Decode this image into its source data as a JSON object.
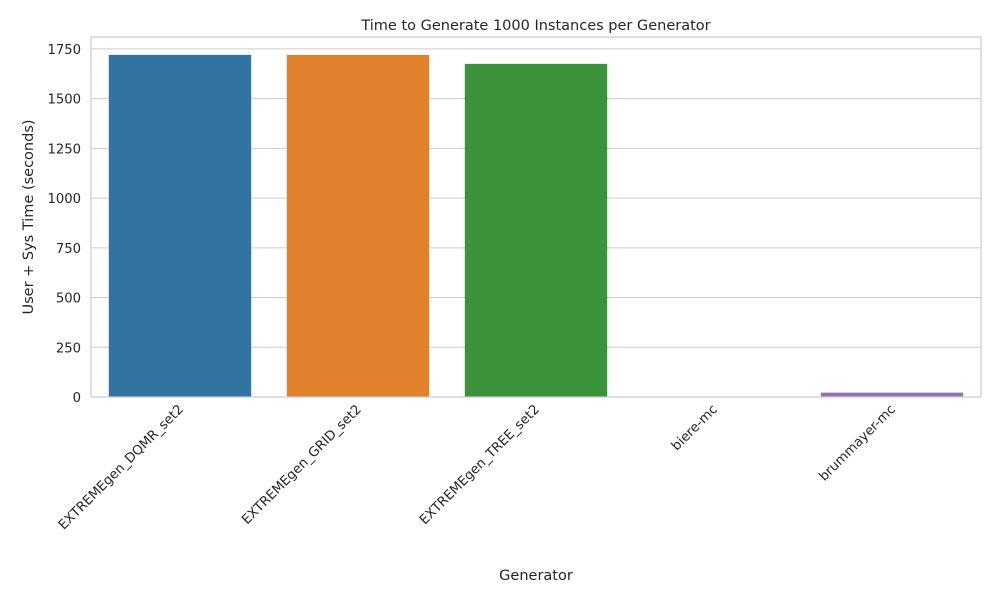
{
  "chart_data": {
    "type": "bar",
    "title": "Time to Generate 1000 Instances per Generator",
    "xlabel": "Generator",
    "ylabel": "User + Sys Time (seconds)",
    "categories": [
      "EXTREMEgen_DQMR_set2",
      "EXTREMEgen_GRID_set2",
      "EXTREMEgen_TREE_set2",
      "biere-mc",
      "brummayer-mc"
    ],
    "values": [
      1720,
      1720,
      1675,
      2,
      22
    ],
    "colors": [
      "#3274a1",
      "#e1812c",
      "#3a923a",
      "#c03d3e",
      "#9372b2"
    ],
    "ylim": [
      0,
      1810
    ],
    "yticks": [
      0,
      250,
      500,
      750,
      1000,
      1250,
      1500,
      1750
    ],
    "grid": true,
    "legend": "none"
  }
}
